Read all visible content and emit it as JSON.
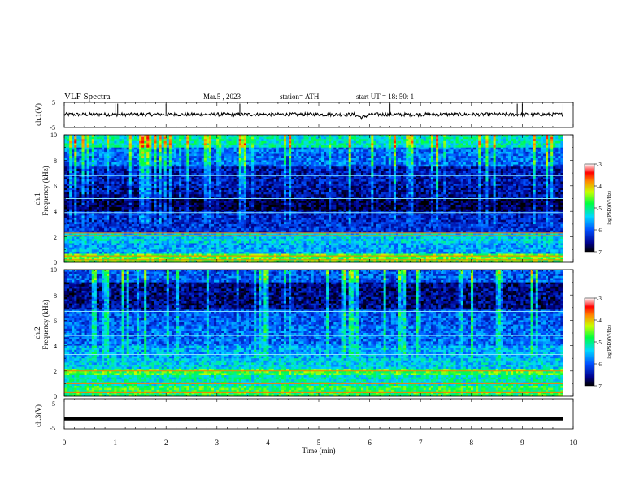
{
  "header": {
    "title": "VLF  Spectra",
    "date": "Mar.5  , 2023",
    "station": "station= ATH",
    "start": "start  UT  =   18: 50: 1"
  },
  "chart_data": [
    {
      "type": "line",
      "name": "ch1-waveform",
      "ylabel": "ch.1(V)",
      "ylim": [
        -5,
        5
      ],
      "yticks": [
        "5",
        "-5"
      ],
      "xlim": [
        0,
        10
      ],
      "baseline": 0.2,
      "spikes_x": [
        1.0,
        1.05,
        2.0,
        3.45,
        6.4,
        8.9,
        9.0,
        9.8
      ],
      "trough_x": 5.85,
      "color": "#000000"
    },
    {
      "type": "heatmap",
      "name": "ch1-spectrogram",
      "ylabel_top": "ch.1",
      "ylabel": "Frequency  (kHz)",
      "ylim": [
        0,
        10
      ],
      "yticks": [
        "0",
        "2",
        "4",
        "6",
        "8",
        "10"
      ],
      "xlim": [
        0,
        9.8
      ],
      "bands": [
        {
          "from": 9.0,
          "to": 10.0,
          "level": -5.2
        },
        {
          "from": 7.5,
          "to": 9.0,
          "level": -5.9
        },
        {
          "from": 6.0,
          "to": 7.5,
          "level": -6.4
        },
        {
          "from": 5.0,
          "to": 6.0,
          "level": -6.5
        },
        {
          "from": 4.0,
          "to": 5.0,
          "level": -6.8
        },
        {
          "from": 3.0,
          "to": 4.0,
          "level": -6.3
        },
        {
          "from": 2.4,
          "to": 3.0,
          "level": -6.2
        },
        {
          "from": 1.5,
          "to": 2.4,
          "level": -5.4
        },
        {
          "from": 0.7,
          "to": 1.5,
          "level": -5.6
        },
        {
          "from": 0.0,
          "to": 0.7,
          "level": -4.6
        }
      ],
      "lines_khz": [
        0.2,
        0.5,
        2.1,
        2.3,
        3.9,
        5.0,
        6.8
      ],
      "colorbar": {
        "label": "log(PSD)(V²/Hz)",
        "range": [
          -7,
          -3
        ],
        "ticks": [
          "-3",
          "-4",
          "-5",
          "-6",
          "-7"
        ]
      }
    },
    {
      "type": "heatmap",
      "name": "ch2-spectrogram",
      "ylabel_top": "ch.2",
      "ylabel": "Frequency  (kHz)",
      "ylim": [
        0,
        10
      ],
      "yticks": [
        "0",
        "2",
        "4",
        "6",
        "8",
        "10"
      ],
      "xlim": [
        0,
        9.8
      ],
      "bands": [
        {
          "from": 9.0,
          "to": 10.0,
          "level": -6.0
        },
        {
          "from": 6.8,
          "to": 9.0,
          "level": -6.6
        },
        {
          "from": 5.5,
          "to": 6.8,
          "level": -6.0
        },
        {
          "from": 4.0,
          "to": 5.5,
          "level": -5.9
        },
        {
          "from": 3.0,
          "to": 4.0,
          "level": -5.6
        },
        {
          "from": 2.2,
          "to": 3.0,
          "level": -5.4
        },
        {
          "from": 1.6,
          "to": 2.2,
          "level": -4.7
        },
        {
          "from": 0.8,
          "to": 1.6,
          "level": -5.2
        },
        {
          "from": 0.0,
          "to": 0.8,
          "level": -4.8
        }
      ],
      "lines_khz": [
        0.3,
        1.0,
        2.0,
        3.3,
        4.8,
        6.7
      ],
      "colorbar": {
        "label": "log(PSD)(V²/Hz)",
        "range": [
          -7,
          -3
        ],
        "ticks": [
          "-3",
          "-4",
          "-5",
          "-6",
          "-7"
        ]
      }
    },
    {
      "type": "line",
      "name": "ch3-waveform",
      "ylabel": "ch.3(V)",
      "ylim": [
        -5,
        5
      ],
      "yticks": [
        "5",
        "-5"
      ],
      "xlim": [
        0,
        10
      ],
      "baseline": -1.7,
      "color": "#000000",
      "xlabel": "Time  (min)",
      "xticks": [
        "0",
        "1",
        "2",
        "3",
        "4",
        "5",
        "6",
        "7",
        "8",
        "9",
        "10"
      ]
    }
  ]
}
